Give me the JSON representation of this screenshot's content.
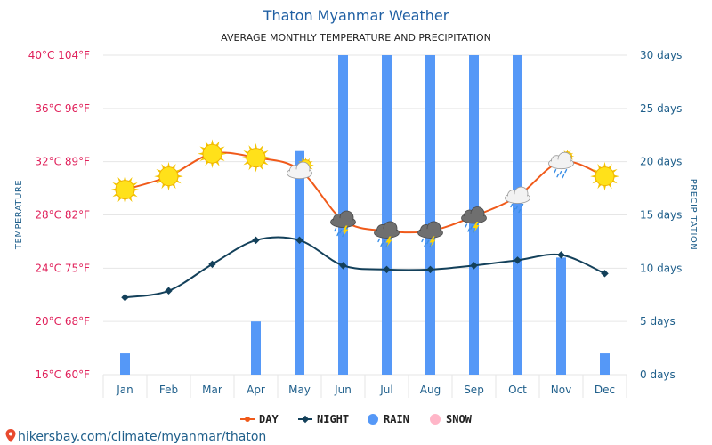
{
  "chart_data": {
    "type": "bar+line",
    "title": "Thaton Myanmar Weather",
    "subtitle": "AVERAGE MONTHLY TEMPERATURE AND PRECIPITATION",
    "categories": [
      "Jan",
      "Feb",
      "Mar",
      "Apr",
      "May",
      "Jun",
      "Jul",
      "Aug",
      "Sep",
      "Oct",
      "Nov",
      "Dec"
    ],
    "series": [
      {
        "name": "DAY",
        "kind": "line",
        "axis": "left",
        "unit": "°C",
        "color": "#f05a1a",
        "values": [
          29.9,
          30.9,
          32.6,
          32.3,
          31.4,
          27.6,
          26.8,
          26.8,
          27.9,
          29.4,
          32.0,
          30.9
        ]
      },
      {
        "name": "NIGHT",
        "kind": "line",
        "axis": "left",
        "unit": "°C",
        "color": "#13405a",
        "values": [
          21.8,
          22.3,
          24.3,
          26.1,
          26.1,
          24.2,
          23.9,
          23.9,
          24.2,
          24.6,
          25.0,
          23.6
        ]
      },
      {
        "name": "RAIN",
        "kind": "bar",
        "axis": "right",
        "unit": "days",
        "color": "#5598f7",
        "values": [
          2,
          0,
          0,
          5,
          21,
          30,
          30,
          30,
          30,
          30,
          11,
          2
        ]
      },
      {
        "name": "SNOW",
        "kind": "bar",
        "axis": "right",
        "unit": "days",
        "color": "#ffb6c8",
        "values": [
          0,
          0,
          0,
          0,
          0,
          0,
          0,
          0,
          0,
          0,
          0,
          0
        ]
      }
    ],
    "icons": [
      "sun-icon",
      "sun-icon",
      "sun-icon",
      "sun-icon",
      "partly-cloudy-icon",
      "thunderstorm-icon",
      "thunderstorm-icon",
      "thunderstorm-icon",
      "thunderstorm-icon",
      "rain-cloud-icon",
      "rain-cloud-icon",
      "sun-icon"
    ],
    "y_left": {
      "label": "TEMPERATURE",
      "range": [
        16,
        40
      ],
      "ticks": [
        "16°C 60°F",
        "20°C 68°F",
        "24°C 75°F",
        "28°C 82°F",
        "32°C 89°F",
        "36°C 96°F",
        "40°C 104°F"
      ]
    },
    "y_right": {
      "label": "PRECIPITATION",
      "range": [
        0,
        30
      ],
      "ticks": [
        "0 days",
        "5 days",
        "10 days",
        "15 days",
        "20 days",
        "25 days",
        "30 days"
      ]
    },
    "grid": true,
    "legend_position": "bottom"
  },
  "footer": "hikersbay.com/climate/myanmar/thaton"
}
